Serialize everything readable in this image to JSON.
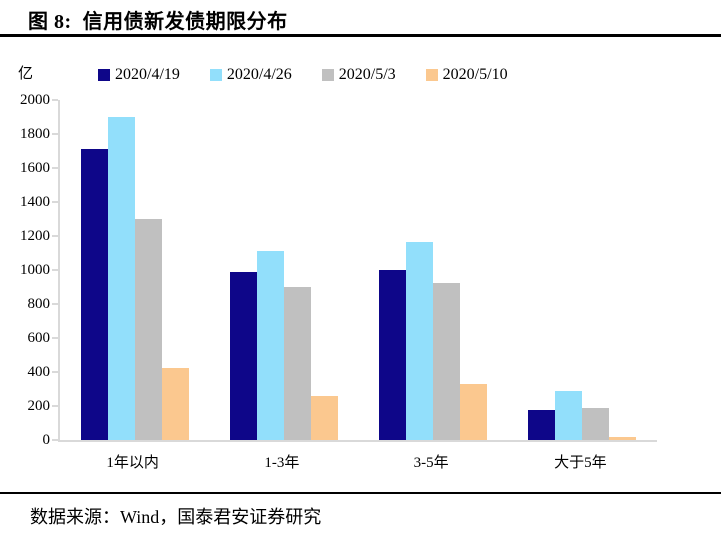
{
  "figure": {
    "title": "图 8:  信用债新发债期限分布",
    "unit_label": "亿",
    "source": "数据来源：Wind，国泰君安证券研究"
  },
  "colors": {
    "series_navy": "#0e0689",
    "series_light_blue": "#92dffb",
    "series_gray": "#c0c0c0",
    "series_orange": "#fbc88f",
    "axis_line": "#d9d9d9",
    "text": "#000000",
    "rule": "#000000"
  },
  "chart_data": {
    "type": "bar",
    "title": "信用债新发债期限分布",
    "ylabel": "亿",
    "xlabel": "",
    "ylim": [
      0,
      2000
    ],
    "ytick_step": 200,
    "grid": false,
    "legend_position": "top",
    "categories": [
      "1年以内",
      "1-3年",
      "3-5年",
      "大于5年"
    ],
    "series": [
      {
        "name": "2020/4/19",
        "color": "#0e0689",
        "values": [
          1710,
          990,
          1000,
          175
        ]
      },
      {
        "name": "2020/4/26",
        "color": "#92dffb",
        "values": [
          1900,
          1110,
          1165,
          290
        ]
      },
      {
        "name": "2020/5/3",
        "color": "#c0c0c0",
        "values": [
          1300,
          900,
          925,
          190
        ]
      },
      {
        "name": "2020/5/10",
        "color": "#fbc88f",
        "values": [
          425,
          260,
          330,
          20
        ]
      }
    ]
  }
}
